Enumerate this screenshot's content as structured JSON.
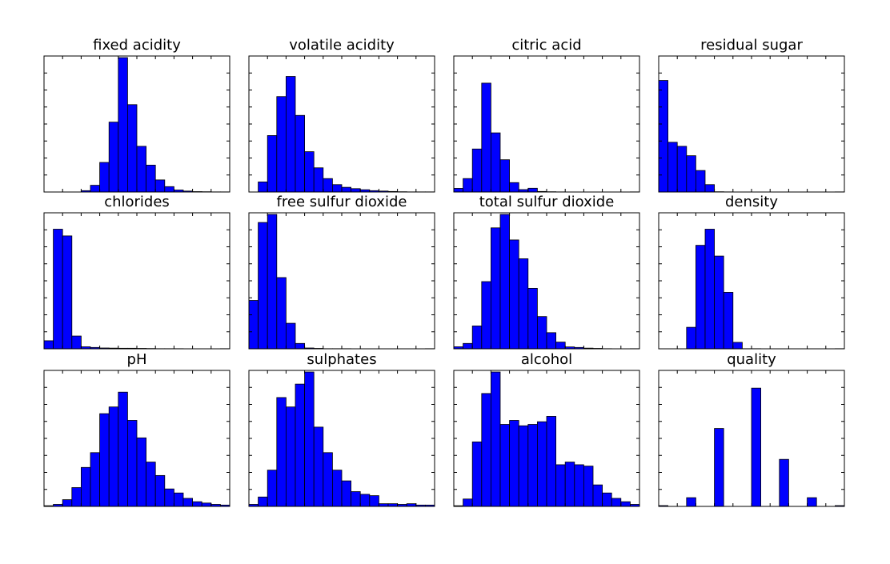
{
  "chart_data": [
    {
      "type": "bar",
      "title": "fixed acidity",
      "ylim": [
        0,
        1
      ],
      "bins_x": [
        0,
        1,
        2,
        3,
        4,
        5,
        6,
        7,
        8,
        9,
        10,
        11,
        12,
        13,
        14,
        15,
        16,
        17,
        18,
        19
      ],
      "values": [
        0,
        0,
        0,
        0,
        0.01,
        0.05,
        0.22,
        0.52,
        1.0,
        0.65,
        0.34,
        0.2,
        0.09,
        0.04,
        0.015,
        0.007,
        0.003,
        0.002,
        0.001,
        0.001
      ]
    },
    {
      "type": "bar",
      "title": "volatile acidity",
      "ylim": [
        0,
        1
      ],
      "bins_x": [
        0,
        1,
        2,
        3,
        4,
        5,
        6,
        7,
        8,
        9,
        10,
        11,
        12,
        13,
        14,
        15,
        16,
        17,
        18,
        19
      ],
      "values": [
        0,
        0.075,
        0.42,
        0.71,
        0.86,
        0.57,
        0.3,
        0.18,
        0.1,
        0.055,
        0.035,
        0.025,
        0.017,
        0.01,
        0.007,
        0.004,
        0.002,
        0.001,
        0.001,
        0.001
      ]
    },
    {
      "type": "bar",
      "title": "citric acid",
      "ylim": [
        0,
        1
      ],
      "bins_x": [
        0,
        1,
        2,
        3,
        4,
        5,
        6,
        7,
        8,
        9,
        10,
        11,
        12,
        13,
        14,
        15,
        16,
        17,
        18,
        19
      ],
      "values": [
        0.027,
        0.1,
        0.32,
        0.81,
        0.44,
        0.24,
        0.07,
        0.018,
        0.028,
        0.004,
        0.002,
        0.001,
        0,
        0,
        0,
        0,
        0,
        0,
        0,
        0.001
      ]
    },
    {
      "type": "bar",
      "title": "residual sugar",
      "ylim": [
        0,
        1
      ],
      "bins_x": [
        0,
        1,
        2,
        3,
        4,
        5,
        6,
        7,
        8,
        9,
        10,
        11,
        12,
        13,
        14,
        15,
        16,
        17,
        18,
        19
      ],
      "values": [
        0.83,
        0.37,
        0.34,
        0.27,
        0.16,
        0.055,
        0.002,
        0.001,
        0,
        0,
        0,
        0,
        0,
        0,
        0,
        0,
        0,
        0,
        0,
        0.001
      ]
    },
    {
      "type": "bar",
      "title": "chlorides",
      "ylim": [
        0,
        1
      ],
      "bins_x": [
        0,
        1,
        2,
        3,
        4,
        5,
        6,
        7,
        8,
        9,
        10,
        11,
        12,
        13,
        14,
        15,
        16,
        17,
        18,
        19
      ],
      "values": [
        0.06,
        0.89,
        0.84,
        0.095,
        0.015,
        0.01,
        0.006,
        0.005,
        0.004,
        0.004,
        0.003,
        0.002,
        0.001,
        0.001,
        0.001,
        0,
        0,
        0,
        0,
        0.001
      ]
    },
    {
      "type": "bar",
      "title": "free sulfur dioxide",
      "ylim": [
        0,
        1
      ],
      "bins_x": [
        0,
        1,
        2,
        3,
        4,
        5,
        6,
        7,
        8,
        9,
        10,
        11,
        12,
        13,
        14,
        15,
        16,
        17,
        18,
        19
      ],
      "values": [
        0.36,
        0.94,
        1.0,
        0.53,
        0.19,
        0.04,
        0.006,
        0.003,
        0.001,
        0.001,
        0.001,
        0,
        0,
        0,
        0,
        0,
        0,
        0,
        0,
        0.001
      ]
    },
    {
      "type": "bar",
      "title": "total sulfur dioxide",
      "ylim": [
        0,
        1
      ],
      "bins_x": [
        0,
        1,
        2,
        3,
        4,
        5,
        6,
        7,
        8,
        9,
        10,
        11,
        12,
        13,
        14,
        15,
        16,
        17,
        18,
        19
      ],
      "values": [
        0.015,
        0.04,
        0.17,
        0.5,
        0.9,
        1.0,
        0.81,
        0.67,
        0.45,
        0.24,
        0.12,
        0.05,
        0.014,
        0.01,
        0.005,
        0.003,
        0.001,
        0,
        0,
        0.001
      ]
    },
    {
      "type": "bar",
      "title": "density",
      "ylim": [
        0,
        1
      ],
      "bins_x": [
        0,
        1,
        2,
        3,
        4,
        5,
        6,
        7,
        8,
        9,
        10,
        11,
        12,
        13,
        14,
        15,
        16,
        17,
        18,
        19
      ],
      "values": [
        0,
        0,
        0,
        0.16,
        0.77,
        0.89,
        0.69,
        0.42,
        0.048,
        0.001,
        0.001,
        0,
        0,
        0,
        0,
        0,
        0,
        0,
        0,
        0.001
      ]
    },
    {
      "type": "bar",
      "title": "pH",
      "ylim": [
        0,
        1
      ],
      "bins_x": [
        0,
        1,
        2,
        3,
        4,
        5,
        6,
        7,
        8,
        9,
        10,
        11,
        12,
        13,
        14,
        15,
        16,
        17,
        18,
        19
      ],
      "values": [
        0.005,
        0.015,
        0.05,
        0.14,
        0.29,
        0.4,
        0.69,
        0.74,
        0.85,
        0.64,
        0.51,
        0.33,
        0.23,
        0.13,
        0.1,
        0.06,
        0.035,
        0.025,
        0.015,
        0.01
      ]
    },
    {
      "type": "bar",
      "title": "sulphates",
      "ylim": [
        0,
        1
      ],
      "bins_x": [
        0,
        1,
        2,
        3,
        4,
        5,
        6,
        7,
        8,
        9,
        10,
        11,
        12,
        13,
        14,
        15,
        16,
        17,
        18,
        19
      ],
      "values": [
        0.015,
        0.07,
        0.27,
        0.81,
        0.74,
        0.91,
        1.0,
        0.59,
        0.4,
        0.27,
        0.19,
        0.11,
        0.09,
        0.08,
        0.02,
        0.02,
        0.015,
        0.02,
        0.01,
        0.01
      ]
    },
    {
      "type": "bar",
      "title": "alcohol",
      "ylim": [
        0,
        1
      ],
      "bins_x": [
        0,
        1,
        2,
        3,
        4,
        5,
        6,
        7,
        8,
        9,
        10,
        11,
        12,
        13,
        14,
        15,
        16,
        17,
        18,
        19
      ],
      "values": [
        0.005,
        0.055,
        0.48,
        0.84,
        1.0,
        0.61,
        0.64,
        0.6,
        0.61,
        0.63,
        0.67,
        0.31,
        0.33,
        0.31,
        0.3,
        0.16,
        0.1,
        0.06,
        0.035,
        0.015
      ]
    },
    {
      "type": "bar",
      "title": "quality",
      "ylim": [
        0,
        1
      ],
      "bins_x": [
        0,
        1,
        2,
        3,
        4,
        5,
        6,
        7,
        8,
        9,
        10,
        11,
        12,
        13,
        14,
        15,
        16,
        17,
        18,
        19
      ],
      "values": [
        0.006,
        0,
        0,
        0.065,
        0,
        0,
        0.58,
        0,
        0,
        0,
        0.88,
        0,
        0,
        0.35,
        0,
        0,
        0.065,
        0,
        0,
        0.006
      ]
    }
  ],
  "colors": {
    "bar_fill": "#0000ff",
    "bar_edge": "#000000",
    "axes": "#000000",
    "background": "#ffffff"
  }
}
